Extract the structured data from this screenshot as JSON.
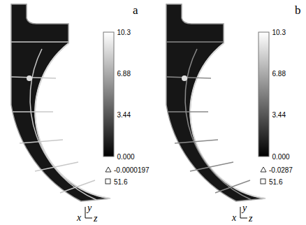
{
  "chart_data": [
    {
      "type": "contour",
      "panel": "a",
      "colorbar": {
        "range": [
          0,
          10.3
        ],
        "ticks": [
          {
            "value": 0,
            "label": "0.000"
          },
          3.44,
          6.88,
          10.3
        ],
        "colors": [
          "#000000",
          "#ffffff"
        ],
        "min": -1.97e-05,
        "max": 51.6
      },
      "axes": [
        "x",
        "y",
        "z"
      ]
    },
    {
      "type": "contour",
      "panel": "b",
      "colorbar": {
        "range": [
          0,
          10.3
        ],
        "ticks": [
          {
            "value": 0,
            "label": "0.000"
          },
          3.44,
          6.88,
          10.3
        ],
        "colors": [
          "#000000",
          "#ffffff"
        ],
        "min": -0.0287,
        "max": 51.6
      },
      "axes": [
        "x",
        "y",
        "z"
      ]
    }
  ]
}
